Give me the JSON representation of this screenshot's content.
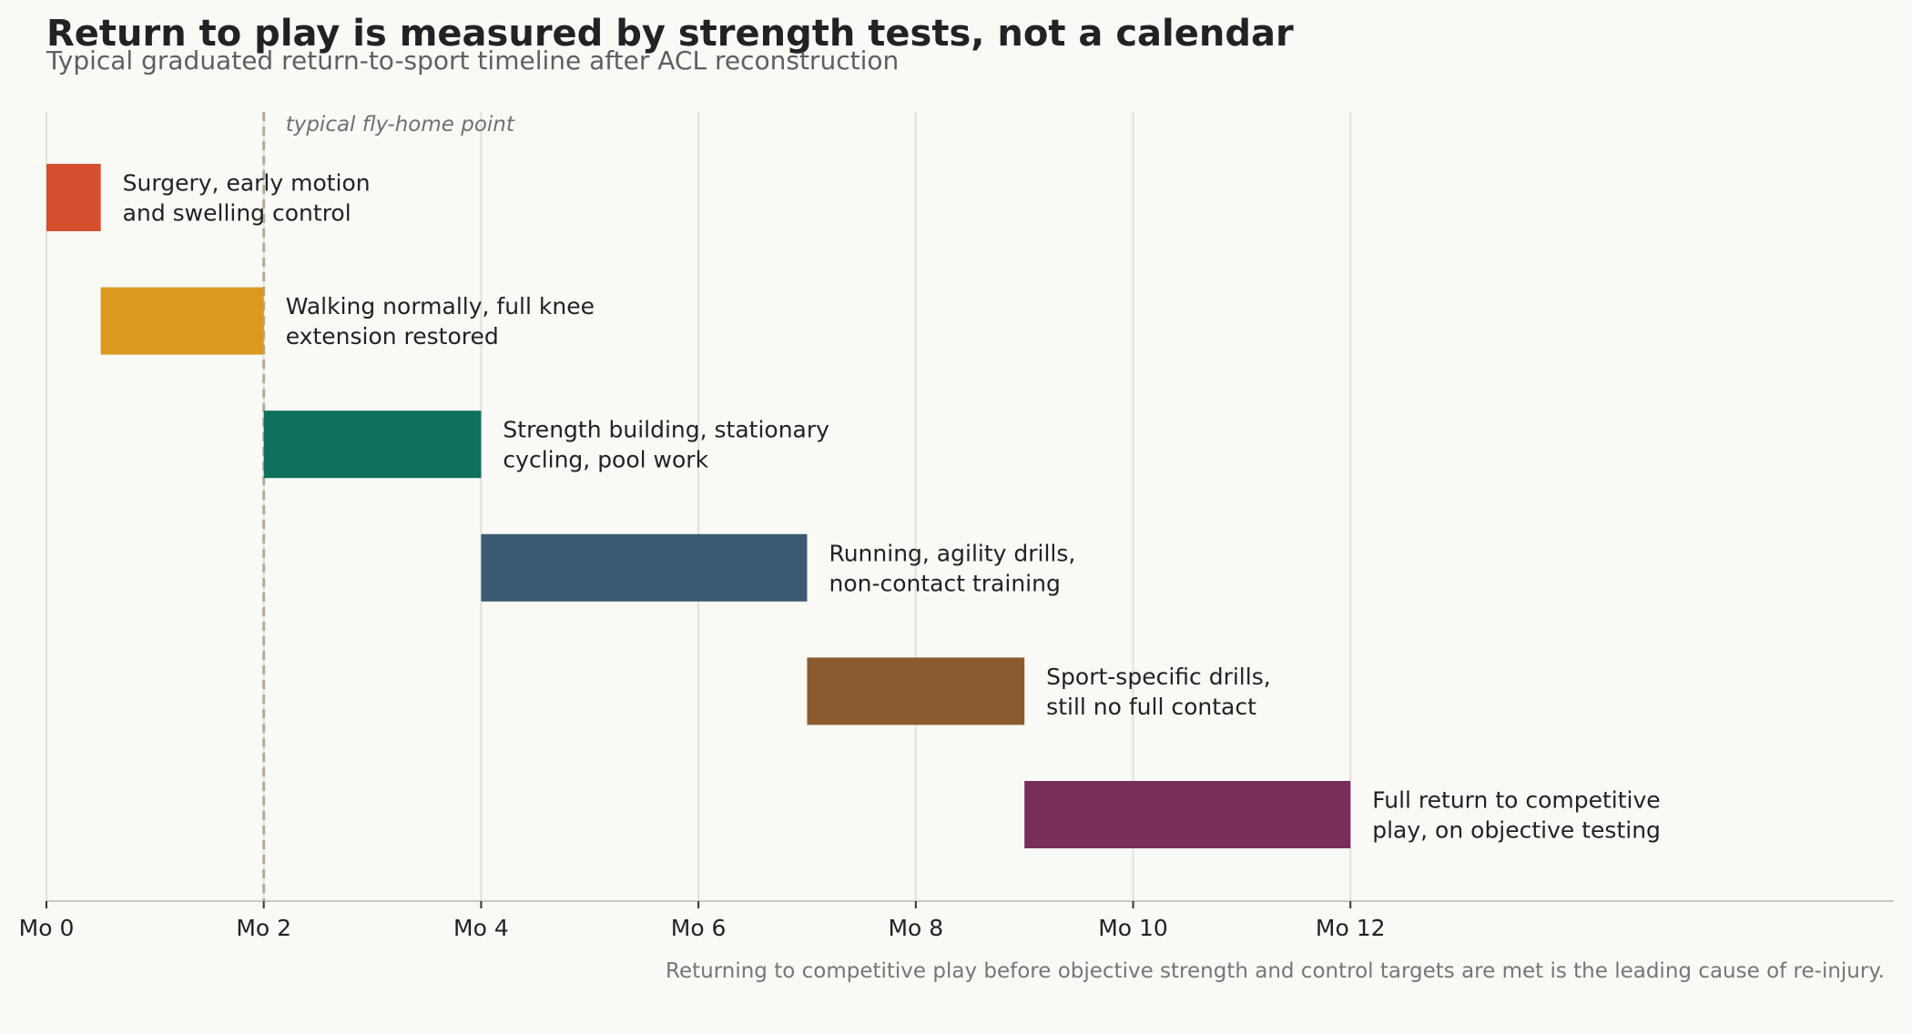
{
  "chart_data": {
    "type": "gantt",
    "title": "Return to play is measured by strength tests, not a calendar",
    "subtitle": "Typical graduated return-to-sport timeline after ACL reconstruction",
    "xlabel": "",
    "ylabel": "",
    "x_unit": "months after surgery",
    "xlim": [
      0,
      17
    ],
    "x_ticks": [
      {
        "value": 0,
        "label": "Mo 0"
      },
      {
        "value": 2,
        "label": "Mo 2"
      },
      {
        "value": 4,
        "label": "Mo 4"
      },
      {
        "value": 6,
        "label": "Mo 6"
      },
      {
        "value": 8,
        "label": "Mo 8"
      },
      {
        "value": 10,
        "label": "Mo 10"
      },
      {
        "value": 12,
        "label": "Mo 12"
      }
    ],
    "grid": true,
    "phases": [
      {
        "start": 0,
        "end": 0.5,
        "label_lines": [
          "Surgery, early motion",
          "and swelling control"
        ],
        "color": "#d4502e"
      },
      {
        "start": 0.5,
        "end": 2,
        "label_lines": [
          "Walking normally, full knee",
          "extension restored"
        ],
        "color": "#da9a22"
      },
      {
        "start": 2,
        "end": 4,
        "label_lines": [
          "Strength building, stationary",
          "cycling, pool work"
        ],
        "color": "#0f705e"
      },
      {
        "start": 4,
        "end": 7,
        "label_lines": [
          "Running, agility drills,",
          "non-contact training"
        ],
        "color": "#3b5a73"
      },
      {
        "start": 7,
        "end": 9,
        "label_lines": [
          "Sport-specific drills,",
          "still no full contact"
        ],
        "color": "#8b5a2f"
      },
      {
        "start": 9,
        "end": 12,
        "label_lines": [
          "Full return to competitive",
          "play, on objective testing"
        ],
        "color": "#782e5b"
      }
    ],
    "reference_line": {
      "value": 2,
      "label": "typical fly-home point",
      "color": "#b8a79d"
    },
    "footnote": "Returning to competitive play before objective strength and control targets are met is the leading cause of re-injury."
  }
}
